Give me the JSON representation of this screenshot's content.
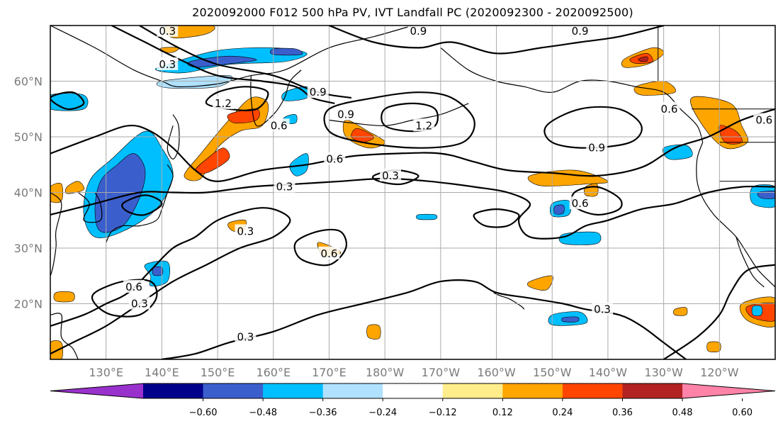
{
  "chart_data": {
    "type": "contour_map",
    "title": "2020092000 F012 500 hPa PV, IVT Landfall PC (2020092300 - 2020092500)",
    "lat_ticks": [
      "20°N",
      "30°N",
      "40°N",
      "50°N",
      "60°N"
    ],
    "lat_values": [
      20,
      30,
      40,
      50,
      60
    ],
    "lon_ticks": [
      "130°E",
      "140°E",
      "150°E",
      "160°E",
      "170°E",
      "180°W",
      "170°W",
      "160°W",
      "150°W",
      "140°W",
      "130°W",
      "120°W"
    ],
    "lon_values": [
      130,
      140,
      150,
      160,
      170,
      180,
      190,
      200,
      210,
      220,
      230,
      240
    ],
    "extent": {
      "lon": [
        120,
        250
      ],
      "lat": [
        10,
        70
      ]
    },
    "contour_levels": [
      0.3,
      0.6,
      0.9,
      1.2
    ],
    "contour_labels": [
      {
        "text": "0.3",
        "lon": 141,
        "lat": 69
      },
      {
        "text": "0.3",
        "lon": 141,
        "lat": 63
      },
      {
        "text": "1.2",
        "lon": 151,
        "lat": 56
      },
      {
        "text": "0.9",
        "lon": 168,
        "lat": 58
      },
      {
        "text": "0.6",
        "lon": 161,
        "lat": 52
      },
      {
        "text": "0.9",
        "lon": 173,
        "lat": 54
      },
      {
        "text": "1.2",
        "lon": 187,
        "lat": 52
      },
      {
        "text": "0.9",
        "lon": 186,
        "lat": 69
      },
      {
        "text": "0.9",
        "lon": 215,
        "lat": 69
      },
      {
        "text": "0.6",
        "lon": 171,
        "lat": 46
      },
      {
        "text": "0.3",
        "lon": 181,
        "lat": 43
      },
      {
        "text": "0.3",
        "lon": 162,
        "lat": 41
      },
      {
        "text": "0.9",
        "lon": 218,
        "lat": 48
      },
      {
        "text": "0.6",
        "lon": 215,
        "lat": 38
      },
      {
        "text": "0.6",
        "lon": 231,
        "lat": 55
      },
      {
        "text": "0.6",
        "lon": 248,
        "lat": 53
      },
      {
        "text": "0.3",
        "lon": 155,
        "lat": 33
      },
      {
        "text": "0.6",
        "lon": 170,
        "lat": 29
      },
      {
        "text": "0.6",
        "lon": 135,
        "lat": 23
      },
      {
        "text": "0.3",
        "lon": 136,
        "lat": 20
      },
      {
        "text": "0.3",
        "lon": 155,
        "lat": 14
      },
      {
        "text": "0.3",
        "lon": 219,
        "lat": 19
      }
    ],
    "colorbar": {
      "ticks": [
        "−0.60",
        "−0.48",
        "−0.36",
        "−0.24",
        "−0.12",
        "0.12",
        "0.24",
        "0.36",
        "0.48",
        "0.60"
      ],
      "tick_values": [
        -0.6,
        -0.48,
        -0.36,
        -0.24,
        -0.12,
        0.12,
        0.24,
        0.36,
        0.48,
        0.6
      ],
      "colors": [
        "#9932cc",
        "#00008b",
        "#3a5fcd",
        "#00bfff",
        "#b0e2ff",
        "#ffffff",
        "#ffec8b",
        "#ffa500",
        "#ff4500",
        "#b22222",
        "#ff83a8"
      ],
      "extend": "both"
    },
    "grid": true,
    "legend": "bottom colorbar"
  }
}
